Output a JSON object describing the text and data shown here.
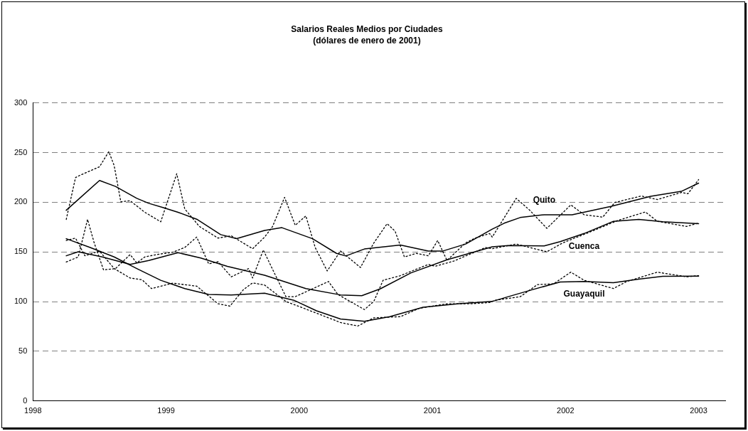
{
  "chart_data": {
    "type": "line",
    "title": "Salarios Reales Medios por Ciudades",
    "subtitle": "(dólares de enero de 2001)",
    "xlim": [
      1998,
      2003.2
    ],
    "xticks": [
      1998,
      1999,
      2000,
      2001,
      2002,
      2003
    ],
    "ylim": [
      0,
      300
    ],
    "yticks": [
      0,
      50,
      100,
      150,
      200,
      250,
      300
    ],
    "grid": "y",
    "legend": false,
    "marker": "none",
    "series": [
      {
        "name": "Quito",
        "color": "#000000",
        "line_style": "solid",
        "x": [
          1998.25,
          1998.5,
          1998.62,
          1998.78,
          1998.87,
          1998.98,
          1999.09,
          1999.23,
          1999.41,
          1999.53,
          1999.74,
          1999.87,
          2000.1,
          2000.28,
          2000.35,
          2000.49,
          2000.76,
          2000.97,
          2001.08,
          2001.25,
          2001.45,
          2001.54,
          2001.66,
          2001.84,
          2002.05,
          2002.34,
          2002.64,
          2002.87,
          2003.0
        ],
        "values": [
          192,
          222,
          216,
          204,
          199,
          194.6,
          190,
          183,
          167.5,
          163.5,
          171.7,
          174.5,
          163.4,
          148.6,
          146,
          153,
          157,
          151,
          151,
          158,
          173,
          179,
          184.7,
          187.5,
          187.5,
          195.8,
          206,
          211,
          219.3
        ]
      },
      {
        "color": "#000000",
        "line_style": "dotted",
        "x": [
          1998.25,
          1998.32,
          1998.36,
          1998.5,
          1998.57,
          1998.61,
          1998.66,
          1998.73,
          1998.84,
          1998.96,
          1999.08,
          1999.14,
          1999.25,
          1999.39,
          1999.49,
          1999.65,
          1999.74,
          1999.8,
          1999.89,
          1999.97,
          2000.05,
          2000.12,
          2000.21,
          2000.31,
          2000.46,
          2000.56,
          2000.66,
          2000.72,
          2000.79,
          2000.88,
          2000.97,
          2001.04,
          2001.11,
          2001.25,
          2001.32,
          2001.43,
          2001.45,
          2001.63,
          2001.73,
          2001.86,
          2002.04,
          2002.14,
          2002.28,
          2002.37,
          2002.57,
          2002.69,
          2002.87,
          2002.92,
          2003.0
        ],
        "values": [
          182.8,
          225,
          227.6,
          235.8,
          251,
          237,
          200.5,
          201.6,
          190,
          180.4,
          228.8,
          193.4,
          175.7,
          164,
          166.3,
          153.3,
          165,
          175.7,
          205,
          176.9,
          186.3,
          154.5,
          130.9,
          151,
          134.4,
          159,
          178.5,
          171,
          145,
          148.6,
          146.2,
          161.6,
          141.5,
          159.2,
          163.9,
          168.6,
          165,
          204,
          192.2,
          173.8,
          197.4,
          187.5,
          185.1,
          199.8,
          206.4,
          202.8,
          209.9,
          208.7,
          222.9
        ]
      },
      {
        "name": "Cuenca",
        "color": "#000000",
        "line_style": "solid",
        "x": [
          1998.25,
          1998.34,
          1998.52,
          1998.73,
          1998.87,
          1999.09,
          1999.26,
          1999.46,
          1999.74,
          2000.05,
          2000.31,
          2000.47,
          2000.61,
          2000.84,
          2001.11,
          2001.45,
          2001.57,
          2001.84,
          2001.96,
          2002.14,
          2002.36,
          2002.55,
          2002.73,
          2003.0
        ],
        "values": [
          146.2,
          150.2,
          145,
          137.5,
          141.5,
          149.3,
          143.9,
          135.6,
          126.6,
          113.2,
          106.8,
          106,
          113,
          129,
          142.2,
          155.2,
          156.4,
          156.1,
          160.4,
          168.6,
          180.9,
          182.8,
          180.4,
          178.5
        ]
      },
      {
        "color": "#000000",
        "line_style": "dotted",
        "x": [
          1998.25,
          1998.34,
          1998.41,
          1998.46,
          1998.53,
          1998.62,
          1998.73,
          1998.78,
          1998.84,
          1998.93,
          1999.05,
          1999.14,
          1999.23,
          1999.32,
          1999.39,
          1999.49,
          1999.62,
          1999.65,
          1999.73,
          1999.81,
          1999.9,
          1999.97,
          2000.22,
          2000.29,
          2000.49,
          2000.56,
          2000.63,
          2000.76,
          2000.97,
          2001.02,
          2001.16,
          2001.4,
          2001.45,
          2001.63,
          2001.86,
          2001.98,
          2002.2,
          2002.39,
          2002.6,
          2002.69,
          2002.91,
          2003.0
        ],
        "values": [
          139.9,
          145,
          182.8,
          159.2,
          132,
          133.3,
          147.4,
          139,
          145,
          147.4,
          149.8,
          154.5,
          165,
          138,
          140.3,
          125,
          133.3,
          123.8,
          152,
          129.7,
          105,
          105,
          120.3,
          107.3,
          92,
          100.2,
          121.5,
          126.2,
          137.5,
          135.6,
          140.8,
          154.5,
          153.3,
          158,
          150.2,
          159.2,
          171,
          181.6,
          190.3,
          180.9,
          175.7,
          179.2
        ]
      },
      {
        "name": "Guayaquil",
        "color": "#000000",
        "line_style": "solid",
        "x": [
          1998.25,
          1998.43,
          1998.61,
          1998.78,
          1998.96,
          1999.14,
          1999.32,
          1999.49,
          1999.74,
          1999.96,
          2000.13,
          2000.31,
          2000.49,
          2000.68,
          2000.93,
          2001.2,
          2001.45,
          2001.57,
          2001.75,
          2001.96,
          2002.14,
          2002.36,
          2002.55,
          2002.73,
          2003.0
        ],
        "values": [
          163.4,
          154.5,
          145,
          133.3,
          121.5,
          113.2,
          107.3,
          106.8,
          108.5,
          101.4,
          90.8,
          82.5,
          80.2,
          84.9,
          94.3,
          97.9,
          100.2,
          105,
          112,
          119.8,
          120.3,
          119.1,
          122.6,
          125.5,
          125.7
        ]
      },
      {
        "color": "#000000",
        "line_style": "dotted",
        "x": [
          1998.25,
          1998.32,
          1998.39,
          1998.5,
          1998.61,
          1998.73,
          1998.82,
          1998.89,
          1999.05,
          1999.23,
          1999.39,
          1999.48,
          1999.58,
          1999.65,
          1999.74,
          1999.9,
          2000.13,
          2000.31,
          2000.44,
          2000.56,
          2000.76,
          2000.9,
          2001.11,
          2001.29,
          2001.43,
          2001.47,
          2001.66,
          2001.79,
          2001.91,
          2002.04,
          2002.14,
          2002.36,
          2002.46,
          2002.69,
          2002.91,
          2003.0
        ],
        "values": [
          161.6,
          163.9,
          146.2,
          150.9,
          133.3,
          123.8,
          122,
          113.2,
          118.6,
          115.6,
          97.9,
          95.5,
          112,
          118.9,
          116.7,
          100.2,
          88.4,
          79,
          75.5,
          83.7,
          84.9,
          93.2,
          97.9,
          97.9,
          99.1,
          101.4,
          105,
          117.2,
          117.9,
          129.7,
          121.5,
          113.2,
          120.3,
          129.7,
          125,
          126.2
        ]
      }
    ]
  }
}
